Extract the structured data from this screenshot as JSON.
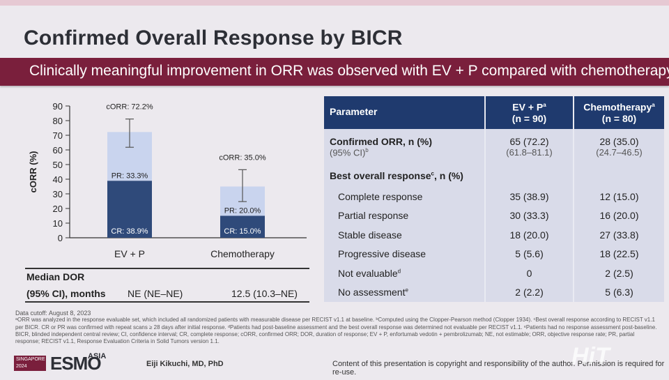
{
  "slide": {
    "title": "Confirmed Overall Response by BICR",
    "banner": "Clinically meaningful improvement in ORR was observed with EV + P compared with chemotherapy"
  },
  "colors": {
    "banner": "#7a1f3c",
    "header": "#1f3a6e",
    "cr_bar": "#2f4a7a",
    "pr_bar": "#c9d4ee",
    "table_body": "#d9dbe9"
  },
  "chart_data": {
    "type": "bar",
    "stacked": true,
    "ylabel": "cORR (%)",
    "ylim": [
      0,
      90
    ],
    "yticks": [
      0,
      10,
      20,
      30,
      40,
      50,
      60,
      70,
      80,
      90
    ],
    "categories": [
      "EV + P",
      "Chemotherapy"
    ],
    "series": [
      {
        "name": "CR",
        "values": [
          38.9,
          15.0
        ],
        "labels": [
          "CR: 38.9%",
          "CR: 15.0%"
        ]
      },
      {
        "name": "PR",
        "values": [
          33.3,
          20.0
        ],
        "labels": [
          "PR: 33.3%",
          "PR: 20.0%"
        ]
      }
    ],
    "totals": [
      72.2,
      35.0
    ],
    "total_labels": [
      "cORR: 72.2%",
      "cORR: 35.0%"
    ],
    "error_bars": [
      [
        61.8,
        81.1
      ],
      [
        24.7,
        46.5
      ]
    ]
  },
  "dor": {
    "label_line1": "Median DOR",
    "label_line2": "(95% CI), months",
    "ev_p": "NE (NE–NE)",
    "chemo": "12.5 (10.3–NE)"
  },
  "table": {
    "headers": {
      "parameter": "Parameter",
      "ev_p": "EV + P",
      "ev_p_sup": "a",
      "ev_p_n": "(n = 90)",
      "chemo": "Chemotherapy",
      "chemo_sup": "a",
      "chemo_n": "(n = 80)"
    },
    "corr": {
      "label": "Confirmed ORR, n (%)",
      "ci_label": "(95% CI)",
      "ci_sup": "b",
      "ev_p": "65 (72.2)",
      "ev_p_ci": "(61.8–81.1)",
      "chemo": "28 (35.0)",
      "chemo_ci": "(24.7–46.5)"
    },
    "bor": {
      "label": "Best overall response",
      "sup": "c",
      "suffix": ", n (%)"
    },
    "rows": [
      {
        "label": "Complete response",
        "sup": "",
        "ev_p": "35 (38.9)",
        "chemo": "12 (15.0)"
      },
      {
        "label": "Partial response",
        "sup": "",
        "ev_p": "30 (33.3)",
        "chemo": "16 (20.0)"
      },
      {
        "label": "Stable disease",
        "sup": "",
        "ev_p": "18 (20.0)",
        "chemo": "27 (33.8)"
      },
      {
        "label": "Progressive disease",
        "sup": "",
        "ev_p": "5 (5.6)",
        "chemo": "18 (22.5)"
      },
      {
        "label": "Not evaluable",
        "sup": "d",
        "ev_p": "0",
        "chemo": "2 (2.5)"
      },
      {
        "label": "No assessment",
        "sup": "e",
        "ev_p": "2 (2.2)",
        "chemo": "5 (6.3)"
      }
    ]
  },
  "footnotes": {
    "cutoff": "Data cutoff: August 8, 2023",
    "line1": "ᵃORR was analyzed in the response evaluable set, which included all randomized patients with measurable disease per RECIST v1.1 at baseline. ᵇComputed using the Clopper-Pearson method (Clopper 1934). ᶜBest overall response according to RECIST v1.1",
    "line2": "per BICR. CR or PR was confirmed with repeat scans ≥ 28 days after initial response. ᵈPatients had post-baseline assessment and the best overall response was determined not evaluable per RECIST v1.1. ᵉPatients had no response assessment post-baseline.",
    "line3": "BICR, blinded independent central review; CI, confidence interval; CR, complete response; cORR, confirmed ORR; DOR, duration of response; EV + P, enfortumab vedotin + pembrolizumab; NE, not estimable; ORR, objective response rate; PR, partial",
    "line4": "response; RECIST v1.1, Response Evaluation Criteria in Solid Tumors version 1.1."
  },
  "footer": {
    "congress_box": "SINGAPORE 2024",
    "congress": "ESMO",
    "congress_suffix": "ASIA",
    "author": "Eiji Kikuchi, MD, PhD",
    "copyright": "Content of this presentation is copyright and responsibility of the author. Permission is required for re-use.",
    "watermark": "HiT"
  }
}
